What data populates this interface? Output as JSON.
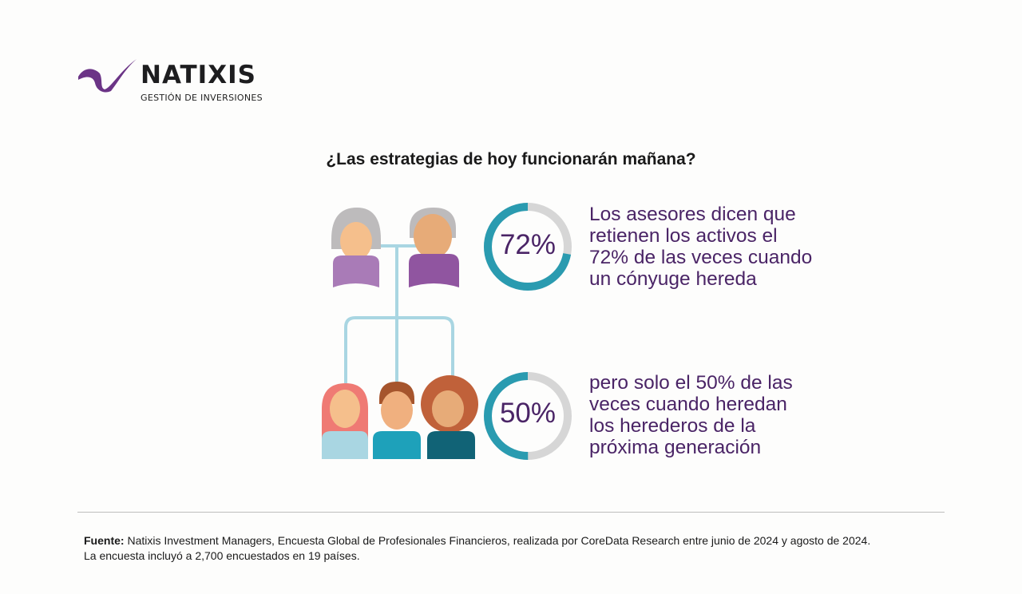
{
  "logo": {
    "name": "NATIXIS",
    "subtitle": "GESTIÓN DE INVERSIONES"
  },
  "title": "¿Las estrategias de hoy funcionarán mañana?",
  "stats": [
    {
      "percent": 72,
      "label": "72%",
      "lines": [
        "Los asesores dicen que",
        "retienen los activos el",
        "72% de las veces cuando",
        "un cónyuge hereda"
      ]
    },
    {
      "percent": 50,
      "label": "50%",
      "lines": [
        "pero solo el 50% de las",
        "veces cuando heredan",
        "los herederos de la",
        "próxima generación"
      ]
    }
  ],
  "source": {
    "label": "Fuente:",
    "line1": "Natixis Investment Managers, Encuesta Global de Profesionales Financieros, realizada por CoreData Research entre junio de 2024 y agosto de 2024.",
    "line2": "La encuesta incluyó a 2,700 encuestados en 19 países."
  },
  "colors": {
    "accent": "#2a9bb0",
    "track": "#d6d6d6",
    "text": "#4a2466"
  }
}
